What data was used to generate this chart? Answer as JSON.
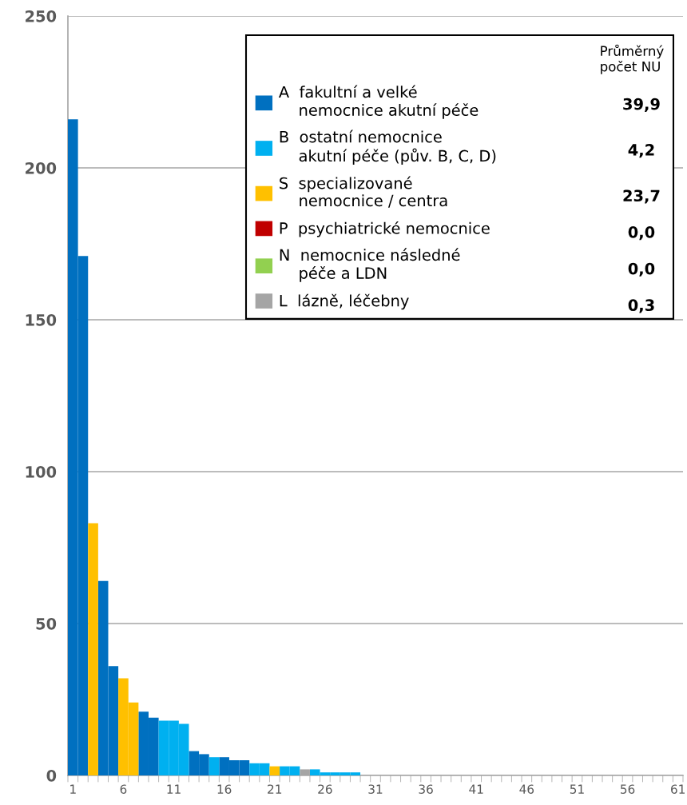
{
  "chart_data": {
    "type": "bar",
    "categories": [
      "1",
      null,
      null,
      null,
      null,
      "6",
      null,
      null,
      null,
      null,
      "11",
      null,
      null,
      null,
      null,
      "16",
      null,
      null,
      null,
      null,
      "21",
      null,
      null,
      null,
      null,
      "26",
      null,
      null,
      null,
      null,
      "31",
      null,
      null,
      null,
      null,
      "36",
      null,
      null,
      null,
      null,
      "41",
      null,
      null,
      null,
      null,
      "46",
      null,
      null,
      null,
      null,
      "51",
      null,
      null,
      null,
      null,
      "56",
      null,
      null,
      null,
      null,
      "61"
    ],
    "series": [
      {
        "name": "A  fakultní a velké\n    nemocnice akutní péče",
        "color": "#0070c0",
        "values": [
          216,
          171,
          null,
          64,
          36,
          null,
          null,
          21,
          19,
          null,
          null,
          null,
          8,
          7,
          null,
          6,
          5,
          5,
          null,
          null,
          null,
          null,
          null,
          null,
          null,
          null,
          null,
          null,
          null,
          null,
          null,
          null,
          null,
          null,
          null,
          null,
          null,
          null,
          null,
          null,
          null,
          null,
          null,
          null,
          null,
          null,
          null,
          null,
          null,
          null,
          null,
          null,
          null,
          null,
          null,
          null,
          null,
          null,
          null,
          null,
          null
        ]
      },
      {
        "name": "B  ostatní nemocnice\n    akutní péče (pův. B, C, D)",
        "color": "#00b0f0",
        "values": [
          null,
          null,
          null,
          null,
          null,
          null,
          null,
          null,
          null,
          18,
          18,
          17,
          null,
          null,
          6,
          null,
          null,
          null,
          4,
          4,
          null,
          3,
          3,
          null,
          2,
          1,
          1,
          1,
          1,
          0,
          0,
          0,
          0,
          0,
          0,
          0,
          0,
          0,
          0,
          0,
          0,
          0,
          0,
          0,
          0,
          0,
          0,
          0,
          0,
          0,
          0,
          0,
          0,
          0,
          0,
          0,
          0,
          0,
          0,
          0,
          0
        ]
      },
      {
        "name": "S  specializované\n    nemocnice / centra",
        "color": "#ffc000",
        "values": [
          null,
          null,
          83,
          null,
          null,
          32,
          24,
          null,
          null,
          null,
          null,
          null,
          null,
          null,
          null,
          null,
          null,
          null,
          null,
          null,
          3,
          null,
          null,
          null,
          null,
          null,
          null,
          null,
          null,
          null,
          null,
          null,
          null,
          null,
          null,
          null,
          null,
          null,
          null,
          null,
          null,
          null,
          null,
          null,
          null,
          null,
          null,
          null,
          null,
          null,
          null,
          null,
          null,
          null,
          null,
          null,
          null,
          null,
          null,
          null,
          null
        ]
      },
      {
        "name": "P  psychiatrické nemocnice",
        "color": "#c00000",
        "values": [
          null,
          null,
          null,
          null,
          null,
          null,
          null,
          null,
          null,
          null,
          null,
          null,
          null,
          null,
          null,
          null,
          null,
          null,
          null,
          null,
          null,
          null,
          null,
          null,
          null,
          null,
          null,
          null,
          null,
          null,
          null,
          null,
          null,
          null,
          null,
          null,
          null,
          null,
          null,
          null,
          null,
          null,
          null,
          null,
          null,
          null,
          null,
          null,
          null,
          null,
          null,
          null,
          null,
          null,
          null,
          null,
          null,
          null,
          null,
          null,
          null
        ]
      },
      {
        "name": "N  nemocnice následné\n    péče a LDN",
        "color": "#92d050",
        "values": [
          null,
          null,
          null,
          null,
          null,
          null,
          null,
          null,
          null,
          null,
          null,
          null,
          null,
          null,
          null,
          null,
          null,
          null,
          null,
          null,
          null,
          null,
          null,
          null,
          null,
          null,
          null,
          null,
          null,
          null,
          null,
          null,
          null,
          null,
          null,
          null,
          null,
          null,
          null,
          null,
          null,
          null,
          null,
          null,
          null,
          null,
          null,
          null,
          null,
          null,
          null,
          null,
          null,
          null,
          null,
          null,
          null,
          null,
          null,
          null,
          null
        ]
      },
      {
        "name": "L  lázně, léčebny",
        "color": "#a5a5a5",
        "values": [
          null,
          null,
          null,
          null,
          null,
          null,
          null,
          null,
          null,
          null,
          null,
          null,
          null,
          null,
          null,
          null,
          null,
          null,
          null,
          null,
          null,
          null,
          null,
          2,
          null,
          null,
          null,
          null,
          null,
          null,
          null,
          null,
          null,
          null,
          null,
          null,
          null,
          null,
          null,
          null,
          null,
          null,
          null,
          null,
          null,
          null,
          null,
          null,
          null,
          null,
          null,
          null,
          null,
          null,
          null,
          null,
          null,
          null,
          null,
          null,
          null
        ]
      }
    ],
    "legend_title": "Průměrný\npočet NU",
    "annotations": [
      "39,9",
      "4,2",
      "23,7",
      "0,0",
      "0,0",
      "0,3"
    ],
    "ylim": [
      0,
      250
    ],
    "yticks": [
      0,
      50,
      100,
      150,
      200,
      250
    ],
    "grid": "y",
    "legend": "top right"
  }
}
